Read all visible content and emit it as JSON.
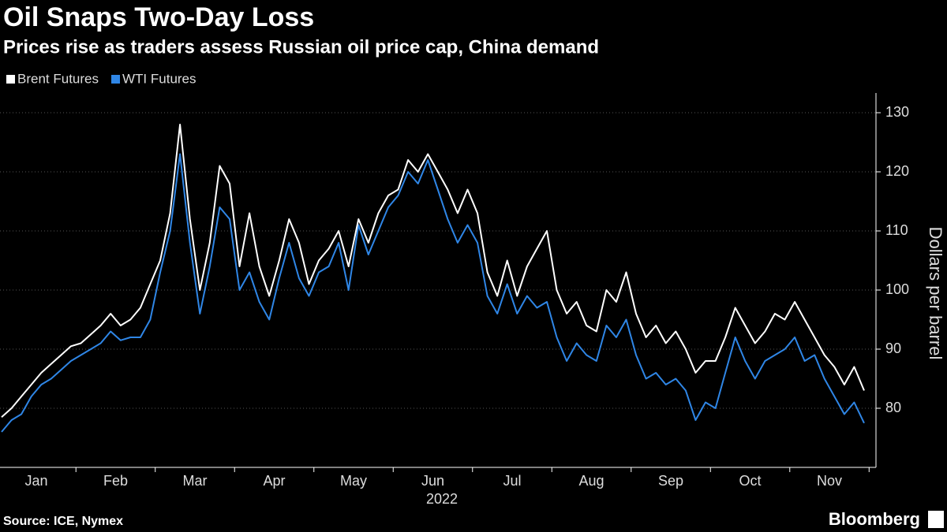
{
  "chart_data": {
    "type": "line",
    "title": "Oil Snaps Two-Day Loss",
    "subtitle": "Prices rise as traders assess Russian oil price cap, China demand",
    "x_label": "2022",
    "y_label": "Dollars per barrel",
    "categories": [
      null,
      null,
      null,
      null,
      "Jan",
      null,
      null,
      null,
      null,
      null,
      null,
      null,
      "Feb",
      null,
      null,
      null,
      null,
      null,
      null,
      null,
      "Mar",
      null,
      null,
      null,
      null,
      null,
      null,
      null,
      "Apr",
      null,
      null,
      null,
      null,
      null,
      null,
      null,
      "May",
      null,
      null,
      null,
      null,
      null,
      null,
      null,
      "Jun",
      null,
      null,
      null,
      null,
      null,
      null,
      null,
      "Jul",
      null,
      null,
      null,
      null,
      null,
      null,
      null,
      "Aug",
      null,
      null,
      null,
      null,
      null,
      null,
      null,
      "Sep",
      null,
      null,
      null,
      null,
      null,
      null,
      null,
      "Oct",
      null,
      null,
      null,
      null,
      null,
      null,
      null,
      "Nov",
      null,
      null,
      null
    ],
    "series": [
      {
        "name": "Brent Futures",
        "color": "#ffffff",
        "values": [
          78.5,
          80,
          82,
          84,
          86,
          87.5,
          89,
          90.5,
          91,
          92.5,
          94,
          96,
          94,
          95,
          97,
          101,
          105,
          113,
          128,
          112,
          100,
          108,
          121,
          118,
          104,
          113,
          104,
          99,
          105,
          112,
          108,
          101,
          105,
          107,
          110,
          104,
          112,
          108,
          113,
          116,
          117,
          122,
          120,
          123,
          120,
          117,
          113,
          117,
          113,
          103,
          99,
          105,
          99,
          104,
          107,
          110,
          100,
          96,
          98,
          94,
          93,
          100,
          98,
          103,
          96,
          92,
          94,
          91,
          93,
          90,
          86,
          88,
          88,
          92,
          97,
          94,
          91,
          93,
          96,
          95,
          98,
          95,
          92,
          89,
          87,
          84,
          87,
          83
        ]
      },
      {
        "name": "WTI Futures",
        "color": "#2f86e6",
        "values": [
          76,
          78,
          79,
          82,
          84,
          85,
          86.5,
          88,
          89,
          90,
          91,
          93,
          91.5,
          92,
          92,
          95,
          103,
          110,
          123,
          108,
          96,
          104,
          114,
          112,
          100,
          103,
          98,
          95,
          102,
          108,
          102,
          99,
          103,
          104,
          108,
          100,
          111,
          106,
          110,
          114,
          116,
          120,
          118,
          122,
          117,
          112,
          108,
          111,
          108,
          99,
          96,
          101,
          96,
          99,
          97,
          98,
          92,
          88,
          91,
          89,
          88,
          94,
          92,
          95,
          89,
          85,
          86,
          84,
          85,
          83,
          78,
          81,
          80,
          86,
          92,
          88,
          85,
          88,
          89,
          90,
          92,
          88,
          89,
          85,
          82,
          79,
          81,
          77.5
        ]
      }
    ],
    "ylim": [
      70,
      133
    ],
    "yticks": [
      80,
      90,
      100,
      110,
      120,
      130
    ],
    "grid": true,
    "legend": "top-left"
  },
  "footer": {
    "source": "Source: ICE, Nymex",
    "brand": "Bloomberg"
  }
}
